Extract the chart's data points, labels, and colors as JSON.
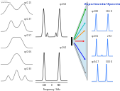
{
  "fig_width": 1.6,
  "fig_height": 1.2,
  "bg_color": "#ffffff",
  "left_panels": {
    "n_panels": 5,
    "labels": [
      "q=0.15",
      "q=0.37",
      "q=0.57",
      "q=0.66",
      "q=0.93"
    ],
    "color": "#666666",
    "header": "1.0 GHz\n(simulated)"
  },
  "mid_panels": {
    "n_panels": 2,
    "labels": [
      "q=264",
      "q=264"
    ],
    "xlim": [
      -1000,
      1000
    ],
    "xticks": [
      -500,
      0,
      500
    ],
    "xlabel": "Frequency / kHz",
    "color": "#222222"
  },
  "cone_colors": [
    "#00aa00",
    "#00bbbb",
    "#ff0000",
    "#0000ff",
    "#888888",
    "#ff8800"
  ],
  "right_panels": {
    "n_panels": 3,
    "title": "Experimental Spectra",
    "title_color": "#2244cc",
    "labels": [
      "q=180",
      "q=101",
      "q=94.7"
    ],
    "temps": [
      "165 K",
      "2 K+",
      "500 K"
    ],
    "color": "#4488ff"
  }
}
